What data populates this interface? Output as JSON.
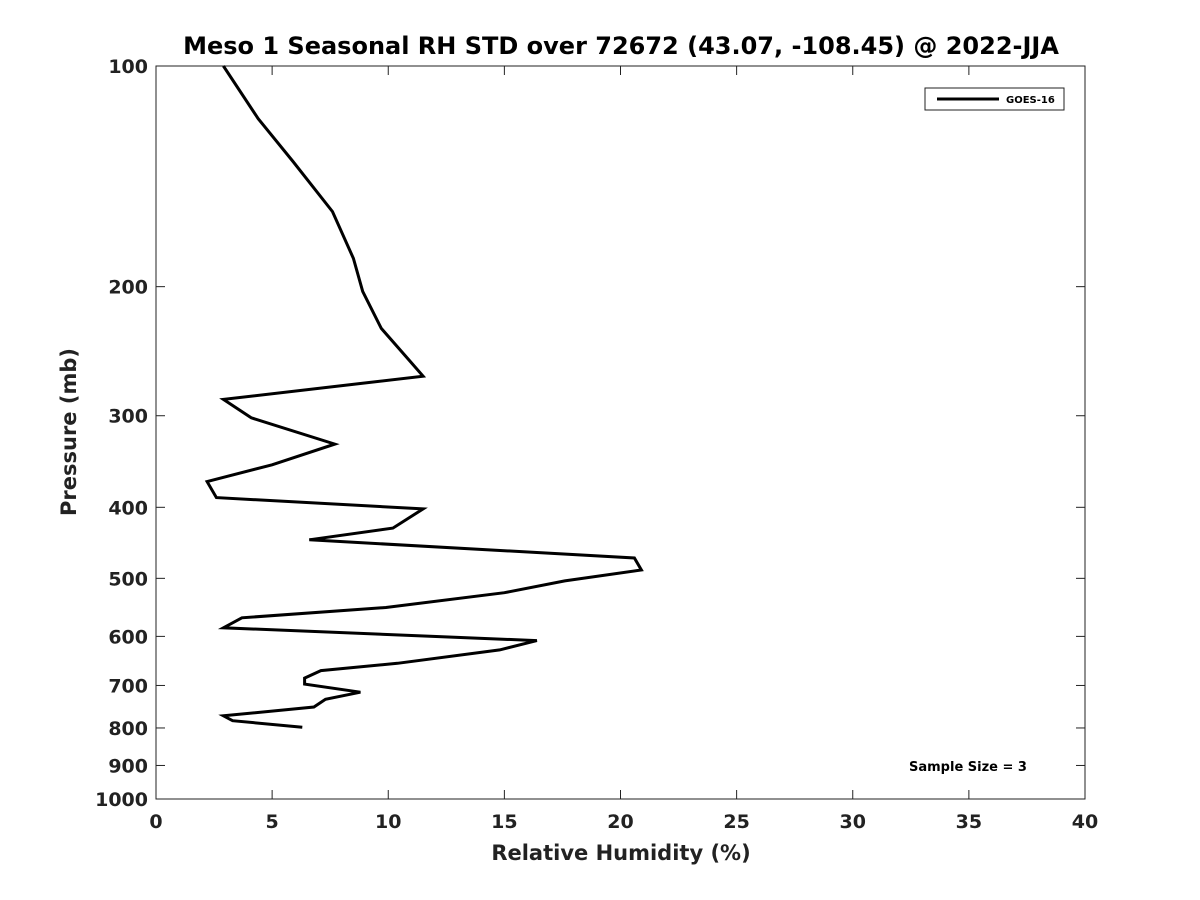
{
  "chart_data": {
    "type": "line",
    "title": "Meso 1 Seasonal RH STD over 72672 (43.07, -108.45) @ 2022-JJA",
    "xlabel": "Relative Humidity (%)",
    "ylabel": "Pressure (mb)",
    "xlim": [
      0,
      40
    ],
    "ylim": [
      100,
      1000
    ],
    "yscale": "log",
    "y_reversed": true,
    "x_ticks": [
      0,
      5,
      10,
      15,
      20,
      25,
      30,
      35,
      40
    ],
    "x_tick_labels": [
      "0",
      "5",
      "10",
      "15",
      "20",
      "25",
      "30",
      "35",
      "40"
    ],
    "y_ticks": [
      100,
      200,
      300,
      400,
      500,
      600,
      700,
      800,
      900,
      1000
    ],
    "y_tick_labels": [
      "100",
      "200",
      "300",
      "400",
      "500",
      "600",
      "700",
      "800",
      "900",
      "1000"
    ],
    "grid": false,
    "legend_position": "top-right",
    "series": [
      {
        "name": "GOES-16",
        "color": "#000000",
        "x": [
          2.9,
          4.4,
          5.9,
          7.6,
          8.5,
          8.9,
          9.7,
          10.9,
          11.5,
          2.9,
          4.1,
          7.7,
          5.0,
          2.2,
          2.6,
          11.5,
          10.2,
          6.6,
          20.6,
          20.9,
          17.6,
          15.0,
          9.9,
          3.7,
          2.9,
          16.4,
          14.8,
          10.4,
          7.1,
          6.4,
          6.4,
          8.8,
          7.3,
          6.8,
          2.9,
          3.3,
          6.3
        ],
        "y": [
          100,
          118,
          135,
          158,
          183,
          203,
          228,
          252,
          265,
          285,
          302,
          328,
          350,
          369,
          388,
          402,
          427,
          443,
          469,
          487,
          504,
          523,
          548,
          566,
          584,
          608,
          626,
          653,
          668,
          684,
          697,
          715,
          731,
          749,
          770,
          782,
          798
        ]
      }
    ],
    "annotations": [
      "Sample Size = 3"
    ]
  }
}
